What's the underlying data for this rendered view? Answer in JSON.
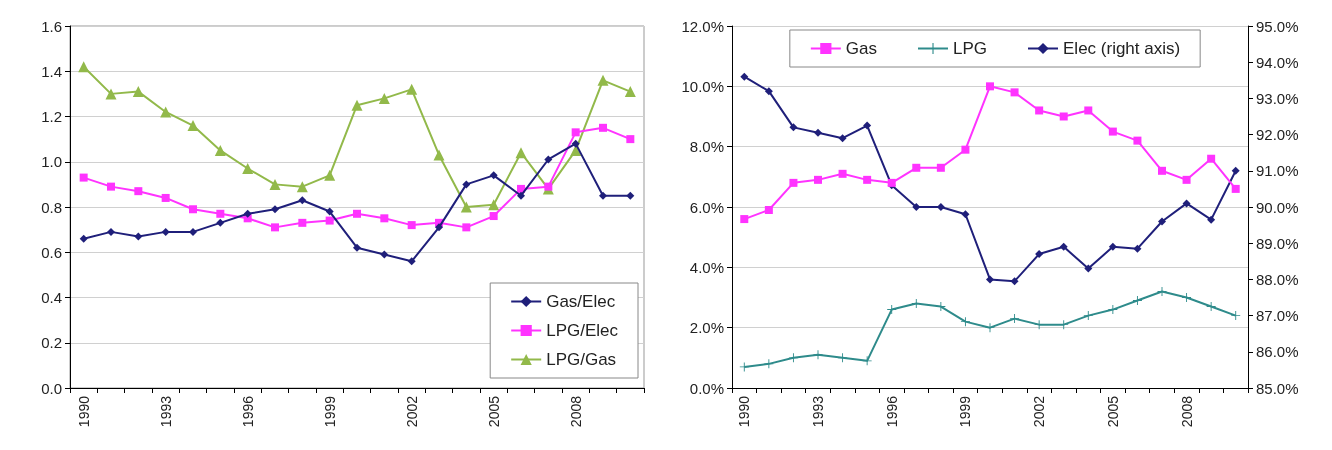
{
  "chart_data": [
    {
      "type": "line",
      "categories": [
        "1990",
        null,
        null,
        "1993",
        null,
        null,
        "1996",
        null,
        null,
        "1999",
        null,
        null,
        "2002",
        null,
        null,
        "2005",
        null,
        null,
        "2008",
        null,
        null
      ],
      "ylim": [
        0,
        1.6
      ],
      "yticks": [
        "0.0",
        0.2,
        0.4,
        0.6,
        0.8,
        "1.0",
        1.2,
        1.4,
        1.6
      ],
      "grid": "y",
      "legend": "bottom right",
      "line_style": "solid",
      "series": [
        {
          "name": "Gas/Elec",
          "color": "#1f1f7a",
          "marker": "diamond",
          "values": [
            0.66,
            0.69,
            0.67,
            0.69,
            0.69,
            0.73,
            0.77,
            0.79,
            0.83,
            0.78,
            0.62,
            0.59,
            0.56,
            0.71,
            0.9,
            0.94,
            0.85,
            1.01,
            1.08,
            0.85,
            0.85
          ]
        },
        {
          "name": "LPG/Elec",
          "color": "#ff33ff",
          "marker": "square",
          "values": [
            0.93,
            0.89,
            0.87,
            0.84,
            0.79,
            0.77,
            0.75,
            0.71,
            0.73,
            0.74,
            0.77,
            0.75,
            0.72,
            0.73,
            0.71,
            0.76,
            0.88,
            0.89,
            1.13,
            1.15,
            1.1
          ]
        },
        {
          "name": "LPG/Gas",
          "color": "#92b94a",
          "marker": "triangle",
          "values": [
            1.42,
            1.3,
            1.31,
            1.22,
            1.16,
            1.05,
            0.97,
            0.9,
            0.89,
            0.94,
            1.25,
            1.28,
            1.32,
            1.03,
            0.8,
            0.81,
            1.04,
            0.88,
            1.05,
            1.36,
            1.31
          ]
        }
      ]
    },
    {
      "type": "line",
      "categories": [
        "1990",
        null,
        null,
        "1993",
        null,
        null,
        "1996",
        null,
        null,
        "1999",
        null,
        null,
        "2002",
        null,
        null,
        "2005",
        null,
        null,
        "2008",
        null,
        null
      ],
      "ylim": [
        0,
        12
      ],
      "yticks": [
        {
          "value": 0,
          "label": "0.0%"
        },
        {
          "value": 2,
          "label": "2.0%"
        },
        {
          "value": 4,
          "label": "4.0%"
        },
        {
          "value": 6,
          "label": "6.0%"
        },
        {
          "value": 8,
          "label": "8.0%"
        },
        {
          "value": 10,
          "label": "10.0%"
        },
        {
          "value": 12,
          "label": "12.0%"
        }
      ],
      "y2lim": [
        85,
        95
      ],
      "y2ticks": [
        {
          "value": 85,
          "label": "85.0%"
        },
        {
          "value": 86,
          "label": "86.0%"
        },
        {
          "value": 87,
          "label": "87.0%"
        },
        {
          "value": 88,
          "label": "88.0%"
        },
        {
          "value": 89,
          "label": "89.0%"
        },
        {
          "value": 90,
          "label": "90.0%"
        },
        {
          "value": 91,
          "label": "91.0%"
        },
        {
          "value": 92,
          "label": "92.0%"
        },
        {
          "value": 93,
          "label": "93.0%"
        },
        {
          "value": 94,
          "label": "94.0%"
        },
        {
          "value": 95,
          "label": "95.0%"
        }
      ],
      "grid": "y",
      "legend": "top",
      "line_style": "solid",
      "series": [
        {
          "name": "Gas",
          "color": "#ff33ff",
          "marker": "square",
          "values": [
            5.6,
            5.9,
            6.8,
            6.9,
            7.1,
            6.9,
            6.8,
            7.3,
            7.3,
            7.9,
            10.0,
            9.8,
            9.2,
            9.0,
            9.2,
            8.5,
            8.2,
            7.2,
            6.9,
            7.6,
            6.6
          ]
        },
        {
          "name": "LPG",
          "color": "#2e8b8b",
          "marker": "cross",
          "values": [
            0.7,
            0.8,
            1.0,
            1.1,
            1.0,
            0.9,
            2.6,
            2.8,
            2.7,
            2.2,
            2.0,
            2.3,
            2.1,
            2.1,
            2.4,
            2.6,
            2.9,
            3.2,
            3.0,
            2.7,
            2.4
          ]
        },
        {
          "name": "Elec (right axis)",
          "color": "#1f1f7a",
          "marker": "diamond",
          "axis": "y2",
          "values": [
            93.6,
            93.2,
            92.2,
            92.05,
            91.9,
            92.25,
            90.6,
            90.0,
            90.0,
            89.8,
            88.0,
            87.95,
            88.7,
            88.9,
            88.3,
            88.9,
            88.85,
            89.6,
            90.1,
            89.65,
            91.0
          ]
        }
      ]
    }
  ]
}
